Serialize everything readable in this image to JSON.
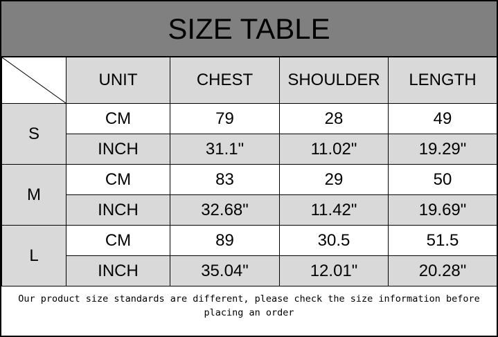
{
  "title": "SIZE TABLE",
  "headers": [
    "UNIT",
    "CHEST",
    "SHOULDER",
    "LENGTH"
  ],
  "rows": [
    {
      "size": "S",
      "cm": [
        "CM",
        "79",
        "28",
        "49"
      ],
      "inch": [
        "INCH",
        "31.1\"",
        "11.02\"",
        "19.29\""
      ]
    },
    {
      "size": "M",
      "cm": [
        "CM",
        "83",
        "29",
        "50"
      ],
      "inch": [
        "INCH",
        "32.68\"",
        "11.42\"",
        "19.69\""
      ]
    },
    {
      "size": "L",
      "cm": [
        "CM",
        "89",
        "30.5",
        "51.5"
      ],
      "inch": [
        "INCH",
        "35.04\"",
        "12.01\"",
        "20.28\""
      ]
    }
  ],
  "note": "Our product size standards are different, please check the size information before placing an order",
  "colors": {
    "title_bg": "#808080",
    "cell_gray": "#d9d9d9"
  }
}
